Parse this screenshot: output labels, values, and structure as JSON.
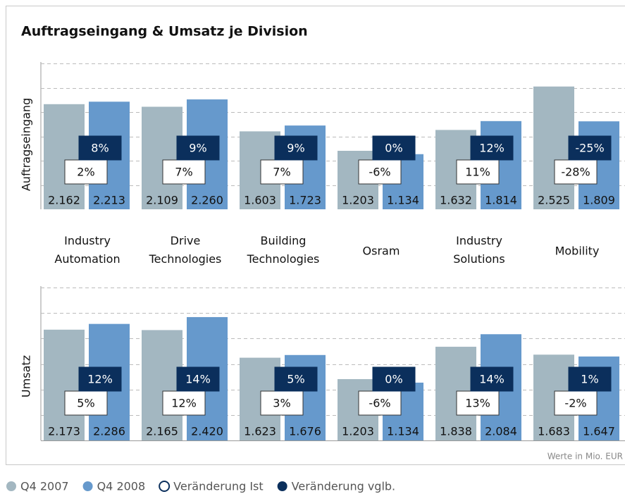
{
  "chart_data": [
    {
      "type": "bar",
      "title": "Auftragseingang & Umsatz je Division",
      "y_label": "Auftragseingang",
      "categories": [
        "Industry Automation",
        "Drive Technologies",
        "Building Technologies",
        "Osram",
        "Industry Solutions",
        "Mobility"
      ],
      "ylim": [
        0,
        3000
      ],
      "yticks": [
        500,
        1000,
        1500,
        2000,
        2500,
        3000
      ],
      "grid": true,
      "series": [
        {
          "name": "Q4 2007",
          "color": "#a3b7c1",
          "values": [
            2162,
            2109,
            1603,
            1203,
            1632,
            2525
          ],
          "value_labels": [
            "2.162",
            "2.109",
            "1.603",
            "1.203",
            "1.632",
            "2.525"
          ]
        },
        {
          "name": "Q4 2008",
          "color": "#6699cc",
          "values": [
            2213,
            2260,
            1723,
            1134,
            1814,
            1809
          ],
          "value_labels": [
            "2.213",
            "2.260",
            "1.723",
            "1.134",
            "1.814",
            "1.809"
          ]
        }
      ],
      "changes": [
        {
          "name": "Veränderung Ist",
          "color": "#ffffff",
          "values": [
            2,
            7,
            7,
            -6,
            11,
            -28
          ],
          "value_labels": [
            "2%",
            "7%",
            "7%",
            "-6%",
            "11%",
            "-28%"
          ]
        },
        {
          "name": "Veränderung vglb.",
          "color": "#0b2f5c",
          "values": [
            8,
            9,
            9,
            0,
            12,
            -25
          ],
          "value_labels": [
            "8%",
            "9%",
            "9%",
            "0%",
            "12%",
            "-25%"
          ]
        }
      ]
    },
    {
      "type": "bar",
      "y_label": "Umsatz",
      "note": "Werte in Mio. EUR",
      "ylim": [
        0,
        3000
      ],
      "yticks": [
        500,
        1000,
        1500,
        2000,
        2500,
        3000
      ],
      "grid": true,
      "series": [
        {
          "color": "#a3b7c1",
          "values": [
            2173,
            2165,
            1623,
            1203,
            1838,
            1683
          ],
          "value_labels": [
            "2.173",
            "2.165",
            "1.623",
            "1.203",
            "1.838",
            "1.683"
          ]
        },
        {
          "color": "#6699cc",
          "values": [
            2286,
            2420,
            1676,
            1134,
            2084,
            1647
          ],
          "value_labels": [
            "2.286",
            "2.420",
            "1.676",
            "1.134",
            "2.084",
            "1.647"
          ]
        }
      ],
      "changes": [
        {
          "color": "#ffffff",
          "values": [
            5,
            12,
            3,
            -6,
            13,
            -2
          ],
          "value_labels": [
            "5%",
            "12%",
            "3%",
            "-6%",
            "13%",
            "-2%"
          ]
        },
        {
          "color": "#0b2f5c",
          "values": [
            12,
            14,
            5,
            0,
            14,
            1
          ],
          "value_labels": [
            "12%",
            "14%",
            "5%",
            "0%",
            "14%",
            "1%"
          ]
        }
      ]
    }
  ]
}
